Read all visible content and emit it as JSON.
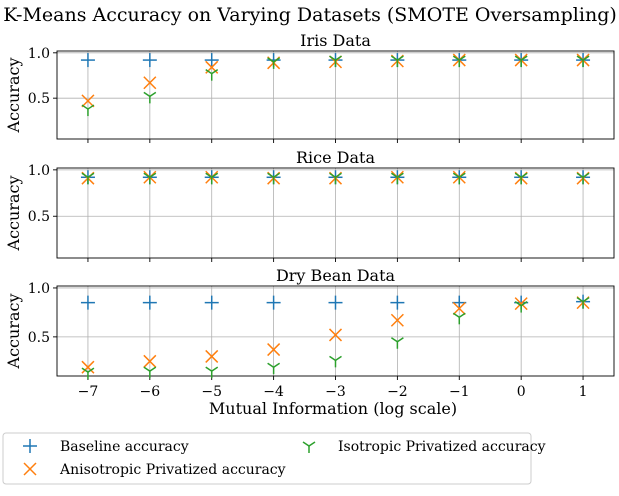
{
  "figure": {
    "title": "K-Means Accuracy on Varying Datasets (SMOTE Oversampling)",
    "xlabel": "Mutual Information (log scale)"
  },
  "colors": {
    "baseline": "#1f77b4",
    "anisotropic": "#ff7f0e",
    "isotropic": "#2ca02c",
    "grid": "#b0b0b0"
  },
  "legend": {
    "placement": "bottom",
    "entries": [
      {
        "key": "baseline",
        "label": "Baseline accuracy",
        "marker": "plus"
      },
      {
        "key": "anisotropic",
        "label": "Anisotropic Privatized accuracy",
        "marker": "x"
      },
      {
        "key": "isotropic",
        "label": "Isotropic Privatized accuracy",
        "marker": "tri"
      }
    ]
  },
  "chart_data": [
    {
      "type": "scatter",
      "title": "Iris Data",
      "ylabel": "Accuracy",
      "xlabel": "",
      "x": [
        -7,
        -6,
        -5,
        -4,
        -3,
        -2,
        -1,
        0,
        1
      ],
      "xticks": [
        "−7",
        "−6",
        "−5",
        "−4",
        "−3",
        "−2",
        "−1",
        "0",
        "1"
      ],
      "show_xticklabels": false,
      "yticks": [
        {
          "value": 0.5,
          "label": "0.5"
        },
        {
          "value": 1.0,
          "label": "1.0"
        }
      ],
      "xlim": [
        -7.5,
        1.5
      ],
      "ylim": [
        0.05,
        1.02
      ],
      "grid": true,
      "series": [
        {
          "key": "baseline",
          "name": "Baseline accuracy",
          "values": [
            0.92,
            0.92,
            0.92,
            0.92,
            0.92,
            0.92,
            0.92,
            0.92,
            0.92
          ]
        },
        {
          "key": "anisotropic",
          "name": "Anisotropic Privatized accuracy",
          "values": [
            0.47,
            0.67,
            0.84,
            0.89,
            0.9,
            0.91,
            0.92,
            0.92,
            0.92
          ]
        },
        {
          "key": "isotropic",
          "name": "Isotropic Privatized accuracy",
          "values": [
            0.38,
            0.52,
            0.77,
            0.9,
            0.92,
            0.92,
            0.92,
            0.92,
            0.92
          ]
        }
      ]
    },
    {
      "type": "scatter",
      "title": "Rice Data",
      "ylabel": "Accuracy",
      "xlabel": "",
      "x": [
        -7,
        -6,
        -5,
        -4,
        -3,
        -2,
        -1,
        0,
        1
      ],
      "xticks": [
        "−7",
        "−6",
        "−5",
        "−4",
        "−3",
        "−2",
        "−1",
        "0",
        "1"
      ],
      "show_xticklabels": false,
      "yticks": [
        {
          "value": 0.5,
          "label": "0.5"
        },
        {
          "value": 1.0,
          "label": "1.0"
        }
      ],
      "xlim": [
        -7.5,
        1.5
      ],
      "ylim": [
        0.05,
        1.02
      ],
      "grid": true,
      "series": [
        {
          "key": "baseline",
          "name": "Baseline accuracy",
          "values": [
            0.92,
            0.92,
            0.92,
            0.92,
            0.92,
            0.92,
            0.92,
            0.92,
            0.92
          ]
        },
        {
          "key": "anisotropic",
          "name": "Anisotropic Privatized accuracy",
          "values": [
            0.91,
            0.92,
            0.92,
            0.91,
            0.91,
            0.92,
            0.92,
            0.91,
            0.91
          ]
        },
        {
          "key": "isotropic",
          "name": "Isotropic Privatized accuracy",
          "values": [
            0.92,
            0.92,
            0.92,
            0.92,
            0.92,
            0.92,
            0.92,
            0.92,
            0.92
          ]
        }
      ]
    },
    {
      "type": "scatter",
      "title": "Dry Bean Data",
      "ylabel": "Accuracy",
      "xlabel": "Mutual Information (log scale)",
      "x": [
        -7,
        -6,
        -5,
        -4,
        -3,
        -2,
        -1,
        0,
        1
      ],
      "xticks": [
        "−7",
        "−6",
        "−5",
        "−4",
        "−3",
        "−2",
        "−1",
        "0",
        "1"
      ],
      "show_xticklabels": true,
      "yticks": [
        {
          "value": 0.5,
          "label": "0.5"
        },
        {
          "value": 1.0,
          "label": "1.0"
        }
      ],
      "xlim": [
        -7.5,
        1.5
      ],
      "ylim": [
        0.1,
        1.02
      ],
      "grid": true,
      "series": [
        {
          "key": "baseline",
          "name": "Baseline accuracy",
          "values": [
            0.85,
            0.85,
            0.85,
            0.85,
            0.85,
            0.85,
            0.85,
            0.85,
            0.86
          ]
        },
        {
          "key": "anisotropic",
          "name": "Anisotropic Privatized accuracy",
          "values": [
            0.19,
            0.25,
            0.3,
            0.37,
            0.52,
            0.67,
            0.79,
            0.84,
            0.85
          ]
        },
        {
          "key": "isotropic",
          "name": "Isotropic Privatized accuracy",
          "values": [
            0.14,
            0.15,
            0.15,
            0.19,
            0.26,
            0.45,
            0.7,
            0.82,
            0.86
          ]
        }
      ]
    }
  ]
}
